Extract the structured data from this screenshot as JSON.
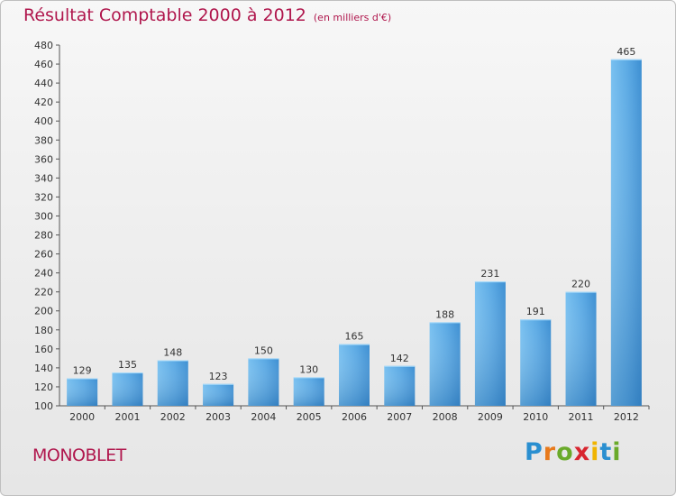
{
  "chart_data": {
    "type": "bar",
    "title": "Résultat Comptable 2000 à 2012",
    "subtitle": "(en milliers d'€)",
    "categories": [
      "2000",
      "2001",
      "2002",
      "2003",
      "2004",
      "2005",
      "2006",
      "2007",
      "2008",
      "2009",
      "2010",
      "2011",
      "2012"
    ],
    "values": [
      129,
      135,
      148,
      123,
      150,
      130,
      165,
      142,
      188,
      231,
      191,
      220,
      465
    ],
    "ylim": [
      100,
      480
    ],
    "yticks": [
      100,
      120,
      140,
      160,
      180,
      200,
      220,
      240,
      260,
      280,
      300,
      320,
      340,
      360,
      380,
      400,
      420,
      440,
      460,
      480
    ],
    "xlabel": "",
    "ylabel": "",
    "grid": false,
    "legend": "none"
  },
  "commune": "MONOBLET",
  "logo": {
    "letters": [
      "P",
      "r",
      "o",
      "x",
      "i",
      "t",
      "i"
    ],
    "colors": [
      "#2a8fd0",
      "#e87a1c",
      "#6aaa2a",
      "#d8252f",
      "#f0b400",
      "#2a8fd0",
      "#6aaa2a"
    ]
  },
  "colors": {
    "bar_light": "#6db8ec",
    "bar_dark": "#2a7fc0",
    "accent": "#b0174d"
  }
}
